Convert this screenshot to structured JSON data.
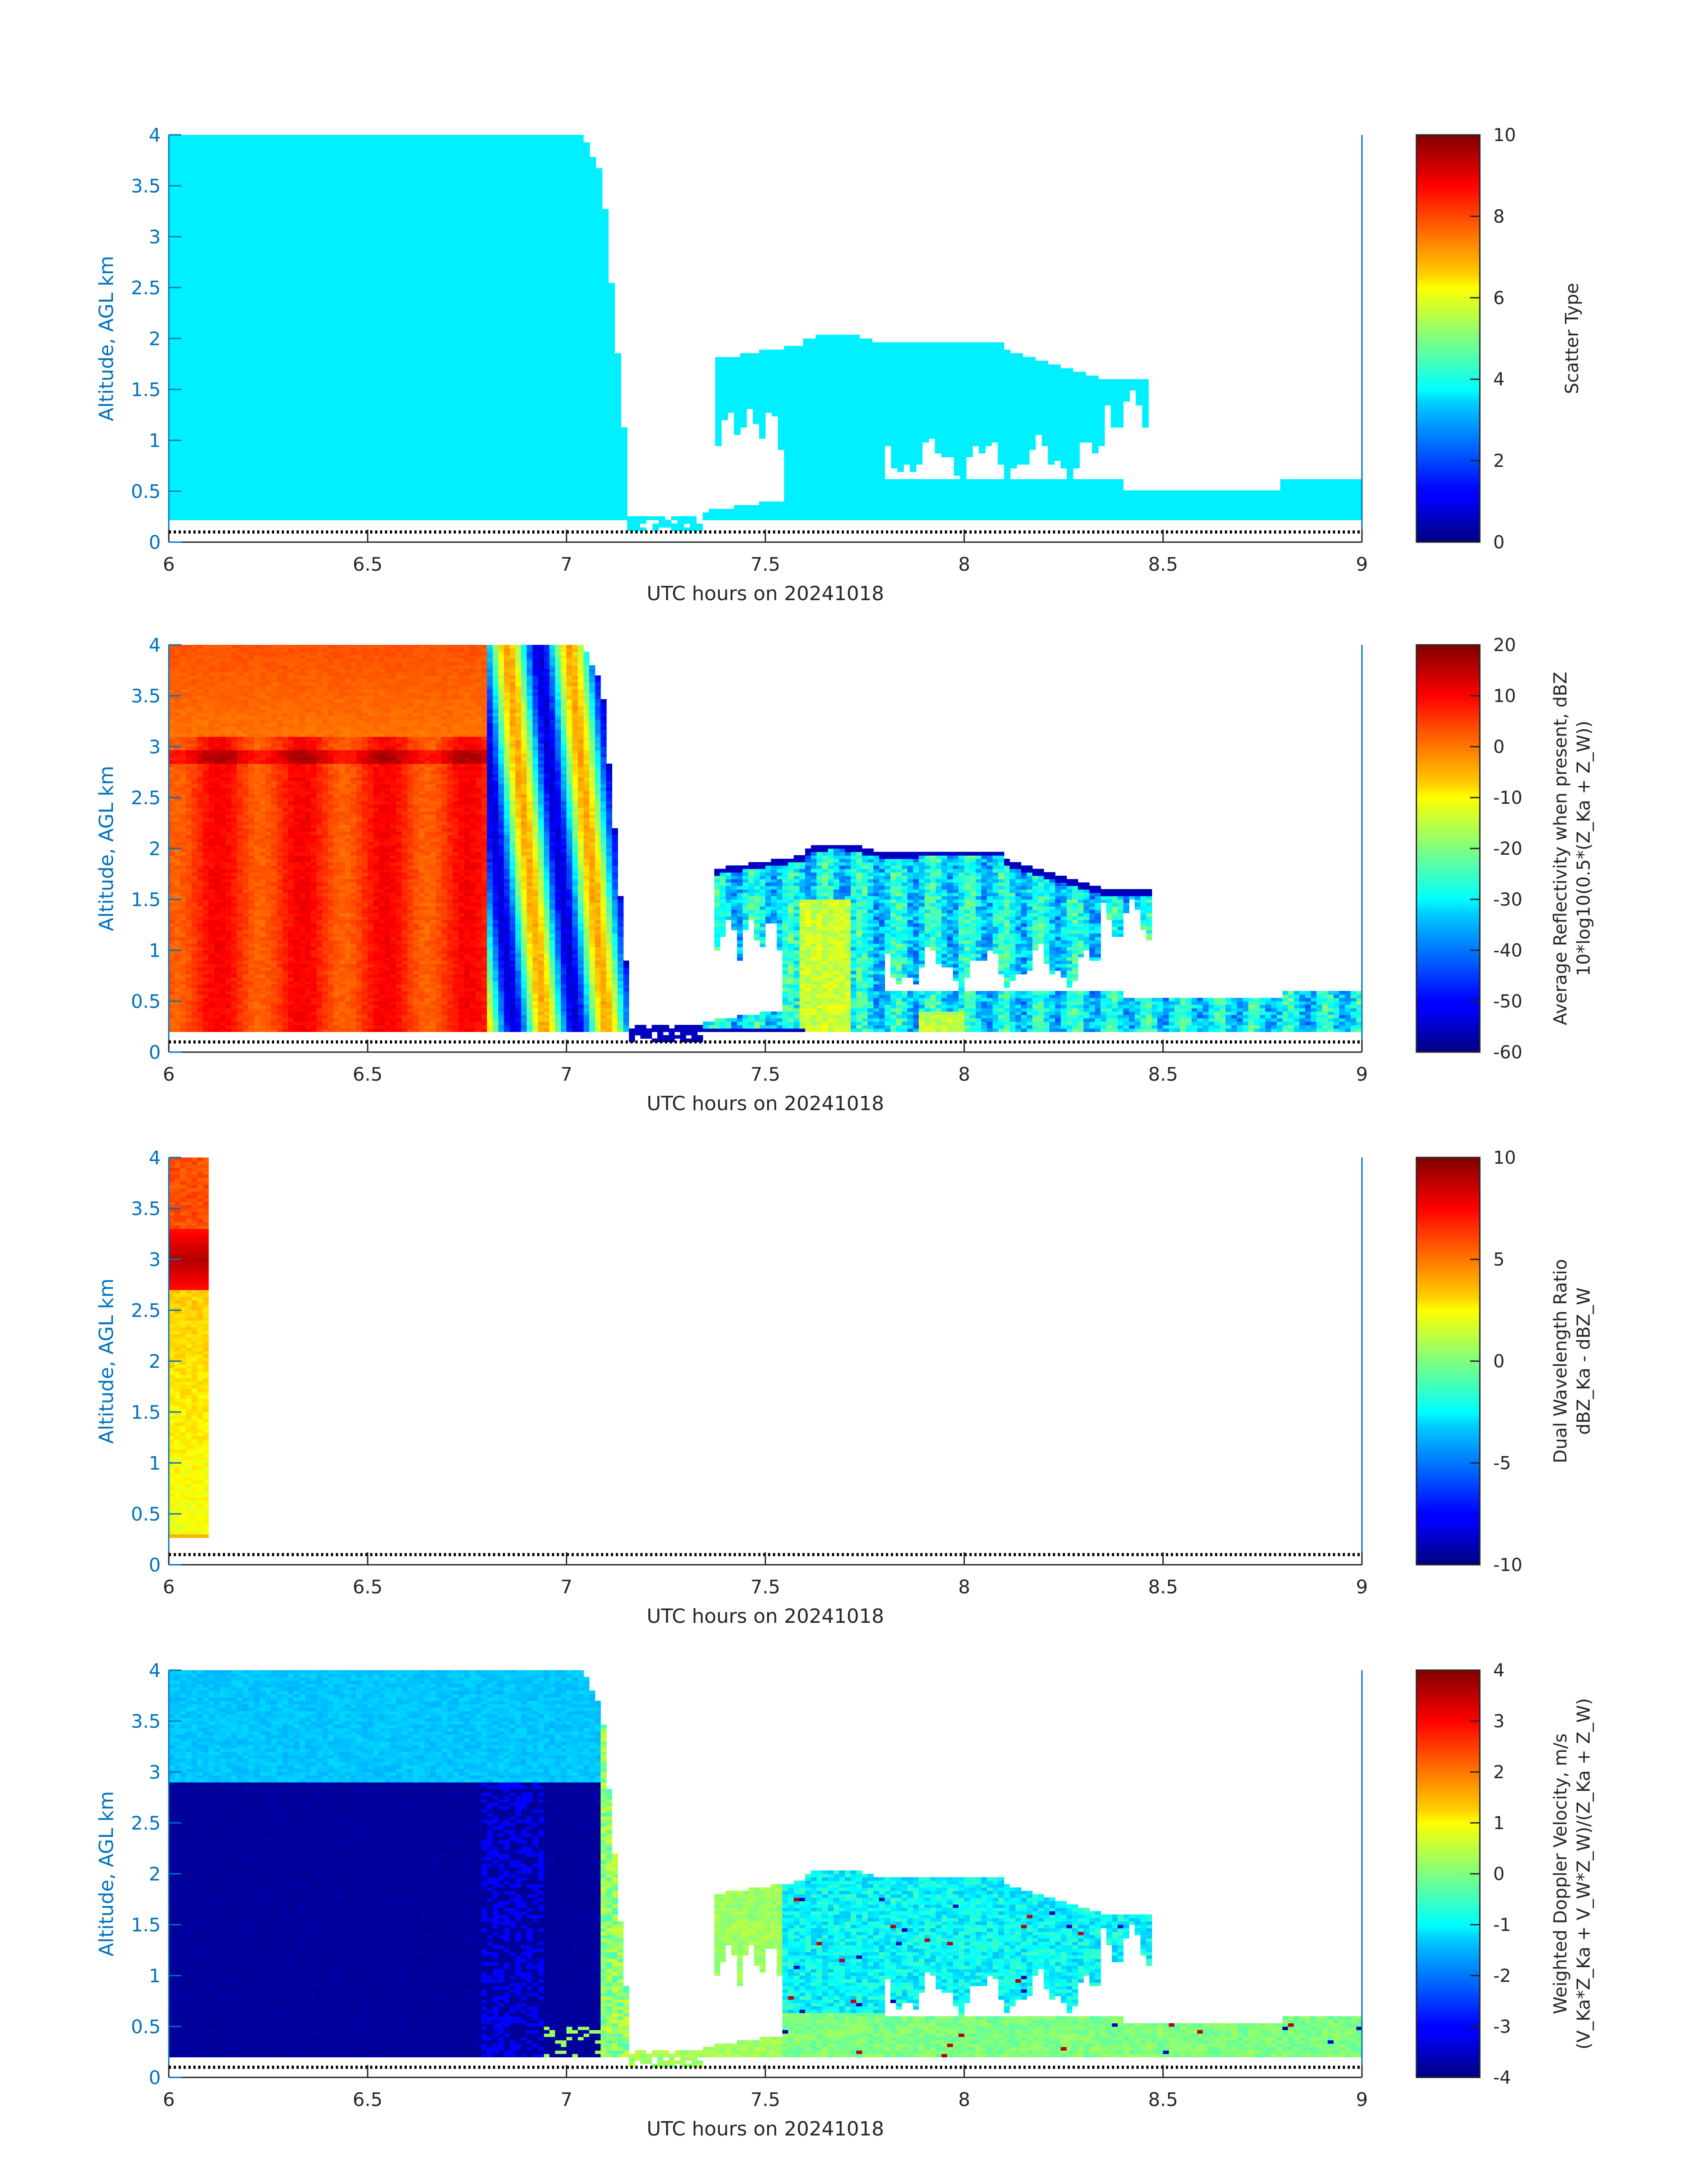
{
  "chart_data": [
    {
      "type": "heatmap",
      "variable": "scatter_type",
      "xlabel": "UTC hours on 20241018",
      "ylabel": "Altitude, AGL km",
      "xlim": [
        6,
        9
      ],
      "ylim": [
        0,
        4
      ],
      "xticks": [
        "6",
        "6.5",
        "7",
        "7.5",
        "8",
        "8.5",
        "9"
      ],
      "yticks": [
        "0",
        "0.5",
        "1",
        "1.5",
        "2",
        "2.5",
        "3",
        "3.5",
        "4"
      ],
      "colorbar": {
        "label": [
          "Scatter Type"
        ],
        "range": [
          0,
          10
        ],
        "ticks": [
          "0",
          "2",
          "4",
          "6",
          "8",
          "10"
        ],
        "colormap": "jet"
      },
      "ground_line_km": 0.1,
      "cloud_regions": [
        {
          "x": [
            6.0,
            7.05
          ],
          "y_bottom": 0.2,
          "y_top": 4.0,
          "value": 3.6
        },
        {
          "x": [
            7.15,
            7.35
          ],
          "y_bottom": 0.1,
          "y_top": 0.25,
          "value": 3.6
        },
        {
          "x": [
            7.35,
            8.47
          ],
          "y_bottom": 0.2,
          "y_top": 2.0,
          "value": 3.6
        },
        {
          "x": [
            7.55,
            9.0
          ],
          "y_bottom": 0.2,
          "y_top": 0.6,
          "value": 3.6
        }
      ]
    },
    {
      "type": "heatmap",
      "variable": "average_reflectivity",
      "xlabel": "UTC hours on 20241018",
      "ylabel": "Altitude, AGL km",
      "xlim": [
        6,
        9
      ],
      "ylim": [
        0,
        4
      ],
      "xticks": [
        "6",
        "6.5",
        "7",
        "7.5",
        "8",
        "8.5",
        "9"
      ],
      "yticks": [
        "0",
        "0.5",
        "1",
        "1.5",
        "2",
        "2.5",
        "3",
        "3.5",
        "4"
      ],
      "colorbar": {
        "label": [
          "Average Reflectivity when present, dBZ",
          "10*log10(0.5*(Z_Ka + Z_W))"
        ],
        "range": [
          -60,
          20
        ],
        "ticks": [
          "-60",
          "-50",
          "-40",
          "-30",
          "-20",
          "-10",
          "0",
          "10",
          "20"
        ],
        "colormap": "jet"
      },
      "ground_line_km": 0.1,
      "cloud_regions": [
        {
          "x": [
            6.0,
            6.8
          ],
          "y_bottom": 0.2,
          "y_top": 4.0,
          "value": 6
        },
        {
          "x": [
            6.8,
            7.1
          ],
          "y_bottom": 0.2,
          "y_top": 4.0,
          "value": -25
        },
        {
          "x": [
            7.35,
            8.47
          ],
          "y_bottom": 0.2,
          "y_top": 2.0,
          "value": -32
        },
        {
          "x": [
            7.55,
            9.0
          ],
          "y_bottom": 0.2,
          "y_top": 0.6,
          "value": -30
        }
      ]
    },
    {
      "type": "heatmap",
      "variable": "dual_wavelength_ratio",
      "xlabel": "UTC hours on 20241018",
      "ylabel": "Altitude, AGL km",
      "xlim": [
        6,
        9
      ],
      "ylim": [
        0,
        4
      ],
      "xticks": [
        "6",
        "6.5",
        "7",
        "7.5",
        "8",
        "8.5",
        "9"
      ],
      "yticks": [
        "0",
        "0.5",
        "1",
        "1.5",
        "2",
        "2.5",
        "3",
        "3.5",
        "4"
      ],
      "colorbar": {
        "label": [
          "Dual Wavelength Ratio",
          "dBZ_Ka - dBZ_W"
        ],
        "range": [
          -10,
          10
        ],
        "ticks": [
          "-10",
          "-5",
          "0",
          "5",
          "10"
        ],
        "colormap": "jet"
      },
      "ground_line_km": 0.1,
      "cloud_regions": [
        {
          "x": [
            6.0,
            6.1
          ],
          "y_bottom": 0.25,
          "y_top": 4.0,
          "value": 5
        }
      ]
    },
    {
      "type": "heatmap",
      "variable": "weighted_doppler_velocity",
      "xlabel": "UTC hours on 20241018",
      "ylabel": "Altitude, AGL km",
      "xlim": [
        6,
        9
      ],
      "ylim": [
        0,
        4
      ],
      "xticks": [
        "6",
        "6.5",
        "7",
        "7.5",
        "8",
        "8.5",
        "9"
      ],
      "yticks": [
        "0",
        "0.5",
        "1",
        "1.5",
        "2",
        "2.5",
        "3",
        "3.5",
        "4"
      ],
      "colorbar": {
        "label": [
          "Weighted Doppler Velocity, m/s",
          "(V_Ka*Z_Ka + V_W*Z_W)/(Z_Ka + Z_W)"
        ],
        "range": [
          -4,
          4
        ],
        "ticks": [
          "-4",
          "-3",
          "-2",
          "-1",
          "0",
          "1",
          "2",
          "3",
          "4"
        ],
        "colormap": "jet"
      },
      "ground_line_km": 0.1,
      "cloud_regions": [
        {
          "x": [
            6.0,
            7.05
          ],
          "y_bottom": 2.9,
          "y_top": 4.0,
          "value": -1.6
        },
        {
          "x": [
            6.0,
            7.05
          ],
          "y_bottom": 0.2,
          "y_top": 2.9,
          "value": -3.8
        },
        {
          "x": [
            7.35,
            8.47
          ],
          "y_bottom": 0.2,
          "y_top": 2.0,
          "value": -1.3
        },
        {
          "x": [
            7.55,
            9.0
          ],
          "y_bottom": 0.2,
          "y_top": 0.6,
          "value": -0.2
        }
      ]
    }
  ]
}
